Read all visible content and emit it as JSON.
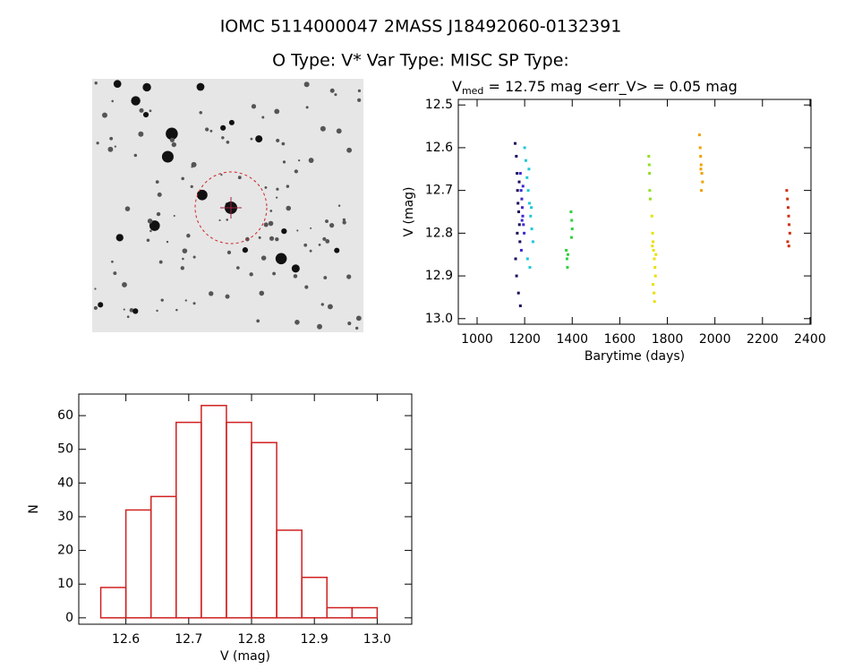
{
  "header": {
    "title": "IOMC 5114000047    2MASS J18492060-0132391",
    "subtitle": "O Type: V*  Var Type: MISC  SP Type:"
  },
  "chart_data": [
    {
      "type": "scatter",
      "title": {
        "main": "V",
        "sub": "med",
        "rest": " = 12.75 mag <err_V> = 0.05 mag"
      },
      "xlabel": "Barytime (days)",
      "ylabel": "V (mag)",
      "xlim": [
        921,
        2404
      ],
      "ylim": [
        13.013,
        12.487
      ],
      "xticks": [
        1000,
        1200,
        1400,
        1600,
        1800,
        2000,
        2200,
        2400
      ],
      "yticks": [
        12.5,
        12.6,
        12.7,
        12.8,
        12.9,
        {
          "value": 13,
          "label": "13.0"
        }
      ],
      "series": [
        {
          "color": "#1a0a5a",
          "x": [
            1160,
            1165,
            1168,
            1170,
            1172,
            1175,
            1178,
            1180,
            1162,
            1166,
            1174,
            1182,
            1177,
            1169
          ],
          "values": [
            12.59,
            12.62,
            12.66,
            12.7,
            12.73,
            12.75,
            12.78,
            12.82,
            12.86,
            12.9,
            12.94,
            12.97,
            12.68,
            12.8
          ]
        },
        {
          "color": "#3a2ad0",
          "x": [
            1182,
            1185,
            1188,
            1190,
            1192,
            1195,
            1198,
            1186,
            1193,
            1189
          ],
          "values": [
            12.66,
            12.7,
            12.72,
            12.74,
            12.76,
            12.78,
            12.8,
            12.84,
            12.69,
            12.77
          ]
        },
        {
          "color": "#1ec8d8",
          "x": [
            1200,
            1205,
            1210,
            1215,
            1220,
            1225,
            1230,
            1235,
            1212,
            1222,
            1228,
            1218
          ],
          "values": [
            12.6,
            12.63,
            12.67,
            12.7,
            12.73,
            12.76,
            12.79,
            12.82,
            12.86,
            12.88,
            12.74,
            12.65
          ]
        },
        {
          "color": "#30d040",
          "x": [
            1375,
            1378,
            1380,
            1382,
            1395,
            1398,
            1400,
            1397
          ],
          "values": [
            12.84,
            12.86,
            12.88,
            12.85,
            12.75,
            12.77,
            12.79,
            12.81
          ]
        },
        {
          "color": "#90e020",
          "x": [
            1722,
            1724,
            1726,
            1728,
            1725
          ],
          "values": [
            12.62,
            12.64,
            12.7,
            12.72,
            12.66
          ]
        },
        {
          "color": "#e8e000",
          "x": [
            1735,
            1738,
            1740,
            1742,
            1745,
            1748,
            1750,
            1740,
            1744,
            1746,
            1737,
            1752
          ],
          "values": [
            12.76,
            12.8,
            12.82,
            12.84,
            12.86,
            12.88,
            12.9,
            12.92,
            12.94,
            12.96,
            12.83,
            12.85
          ]
        },
        {
          "color": "#f0a000",
          "x": [
            1935,
            1938,
            1940,
            1942,
            1945,
            1948,
            1941,
            1943
          ],
          "values": [
            12.57,
            12.6,
            12.62,
            12.64,
            12.66,
            12.68,
            12.65,
            12.7
          ]
        },
        {
          "color": "#d03010",
          "x": [
            2302,
            2305,
            2308,
            2310,
            2312,
            2315,
            2306,
            2311
          ],
          "values": [
            12.7,
            12.72,
            12.74,
            12.76,
            12.78,
            12.8,
            12.82,
            12.83
          ]
        }
      ]
    },
    {
      "type": "histogram",
      "xlabel": "V (mag)",
      "ylabel": "N",
      "xlim": [
        12.525,
        13.055
      ],
      "ylim": [
        -1.9,
        66.4
      ],
      "xticks": [
        12.6,
        12.7,
        12.8,
        12.9,
        {
          "value": 13,
          "label": "13.0"
        }
      ],
      "yticks": [
        0,
        10,
        20,
        30,
        40,
        50,
        60
      ],
      "color": "#d02020",
      "bins": [
        12.56,
        12.6,
        12.64,
        12.68,
        12.72,
        12.76,
        12.8,
        12.84,
        12.88,
        12.92,
        12.96,
        13.0
      ],
      "counts": [
        9,
        32,
        36,
        58,
        63,
        58,
        52,
        26,
        12,
        3,
        3
      ]
    }
  ]
}
